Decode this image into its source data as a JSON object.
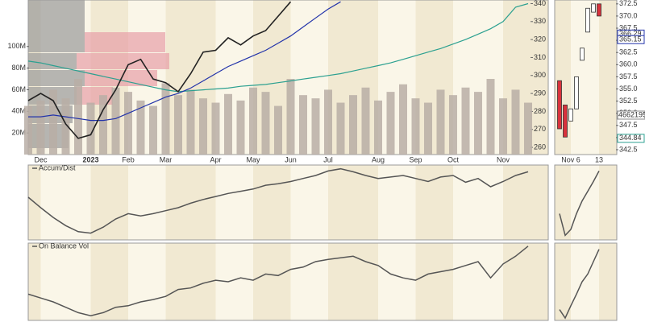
{
  "chart_data": [
    {
      "type": "line",
      "categories": [
        null,
        "Dec",
        null,
        null,
        null,
        "2023",
        null,
        null,
        "Feb",
        null,
        null,
        "Mar",
        null,
        null,
        null,
        "Apr",
        null,
        null,
        "May",
        null,
        null,
        "Jun",
        null,
        null,
        "Jul",
        null,
        null,
        null,
        "Aug",
        null,
        null,
        "Sep",
        null,
        null,
        "Oct",
        null,
        null,
        null,
        "Nov",
        null,
        null
      ],
      "ylim": [
        256,
        342
      ],
      "yticks": [
        260,
        270,
        280,
        290,
        300,
        310,
        320,
        330,
        340
      ],
      "y2lim": [
        0,
        143000000
      ],
      "y2ticks": [
        {
          "value": 20000000,
          "label": "20M"
        },
        {
          "value": 40000000,
          "label": "40M"
        },
        {
          "value": 60000000,
          "label": "60M"
        },
        {
          "value": 80000000,
          "label": "80M"
        },
        {
          "value": 100000000,
          "label": "100M"
        }
      ],
      "series": [
        {
          "type": "bar",
          "axis": "y2",
          "color": "#b9aea6",
          "values": [
            45000000,
            50000000,
            60000000,
            52000000,
            70000000,
            48000000,
            55000000,
            62000000,
            58000000,
            50000000,
            45000000,
            66000000,
            55000000,
            60000000,
            52000000,
            48000000,
            56000000,
            50000000,
            62000000,
            58000000,
            45000000,
            70000000,
            55000000,
            52000000,
            60000000,
            48000000,
            55000000,
            62000000,
            50000000,
            58000000,
            65000000,
            52000000,
            48000000,
            60000000,
            55000000,
            62000000,
            58000000,
            70000000,
            52000000,
            60000000,
            48000000
          ]
        },
        {
          "type": "line",
          "color": "#2ba090",
          "values": [
            308,
            307,
            305.5,
            304,
            302.5,
            301,
            299.5,
            298,
            296.5,
            295,
            293.5,
            292,
            291,
            291.5,
            292,
            292.5,
            293,
            294,
            294.5,
            295,
            296,
            297,
            298,
            299,
            300,
            301,
            302.5,
            304,
            305.5,
            307,
            309,
            311,
            313,
            315,
            317.5,
            320,
            323,
            326,
            330,
            338,
            340
          ]
        },
        {
          "type": "line",
          "color": "#2233aa",
          "values": [
            277,
            277,
            278,
            277,
            276,
            275,
            275,
            276,
            279,
            282,
            285,
            288,
            290,
            293,
            297,
            301,
            305,
            308,
            311,
            314,
            318,
            322,
            327,
            332,
            337,
            341,
            null,
            null,
            null,
            null,
            null,
            null,
            null,
            null,
            null,
            null,
            null,
            null,
            null,
            null,
            null
          ]
        },
        {
          "type": "line",
          "color": "#222222",
          "values": [
            286,
            290,
            286,
            273,
            265,
            267,
            281,
            292,
            306,
            309,
            298,
            296,
            291,
            301,
            313,
            314,
            321,
            317,
            322,
            325,
            333,
            341,
            null,
            null,
            null,
            null,
            null,
            null,
            null,
            null,
            null,
            null,
            null,
            null,
            null,
            null,
            null,
            null,
            null,
            null,
            null
          ]
        }
      ]
    },
    {
      "type": "line",
      "title": "Accum/Dist",
      "color": "#555555",
      "ylim": [
        0,
        100
      ],
      "values": [
        57,
        43,
        30,
        19,
        11,
        9,
        17,
        28,
        35,
        32,
        35,
        39,
        43,
        49,
        54,
        58,
        62,
        65,
        68,
        73,
        75,
        78,
        82,
        86,
        92,
        95,
        91,
        86,
        82,
        84,
        86,
        82,
        78,
        84,
        86,
        77,
        82,
        71,
        78,
        86,
        91
      ]
    },
    {
      "type": "line",
      "title": "On Balance Vol",
      "color": "#555555",
      "ylim": [
        0,
        100
      ],
      "values": [
        34,
        29,
        24,
        17,
        10,
        6,
        10,
        17,
        19,
        24,
        27,
        31,
        40,
        42,
        48,
        52,
        50,
        55,
        52,
        60,
        58,
        66,
        69,
        76,
        79,
        81,
        83,
        76,
        71,
        60,
        55,
        52,
        60,
        63,
        66,
        71,
        76,
        55,
        73,
        83,
        96
      ]
    },
    {
      "type": "candlestick",
      "categories": [
        null,
        null,
        "Nov 6",
        null,
        null,
        null,
        null,
        "13"
      ],
      "open": [
        356.7,
        351.7,
        348.4,
        350.9,
        360.9,
        366.7,
        370.8,
        372.5
      ],
      "close": [
        346.8,
        345.1,
        350.9,
        357.5,
        363.4,
        371.6,
        372.5,
        370.0
      ],
      "ylim": [
        341.5,
        373.3
      ],
      "yticks": [
        372.5,
        {
          "value": 370,
          "label": "370.0"
        },
        367.5,
        {
          "value": 365,
          "label": "365.0"
        },
        362.5,
        {
          "value": 360,
          "label": "360.0"
        },
        357.5,
        {
          "value": 355,
          "label": "355.0"
        },
        352.5,
        {
          "value": 350,
          "label": "350.0"
        },
        347.5,
        {
          "value": 345,
          "label": "345.0"
        },
        342.5
      ],
      "up_color": "#ffffff",
      "down_color": "#d8323c",
      "last_values": [
        366.29,
        365.15,
        344.84
      ],
      "last_colors": [
        "#2233aa",
        "#2233aa",
        "#2ba090"
      ],
      "volume_last": 4662195
    },
    {
      "type": "line",
      "color": "#555555",
      "ylim": [
        0,
        100
      ],
      "values": [
        35,
        6,
        14,
        35,
        52,
        65,
        78,
        92
      ]
    },
    {
      "type": "line",
      "color": "#555555",
      "ylim": [
        0,
        100
      ],
      "values": [
        14,
        3,
        19,
        34,
        50,
        60,
        76,
        92
      ]
    }
  ]
}
